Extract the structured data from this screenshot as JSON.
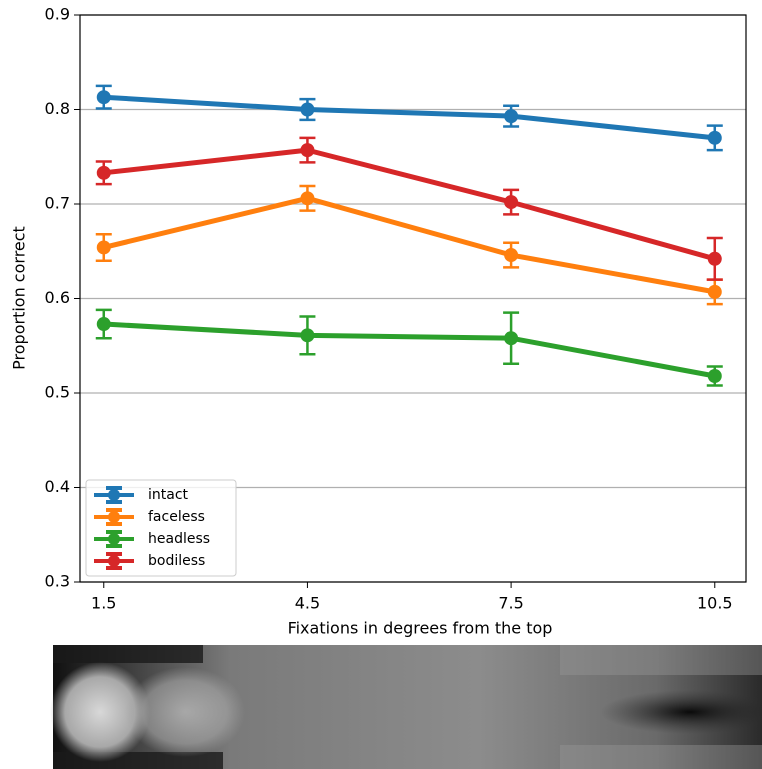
{
  "chart_data": {
    "type": "line",
    "x_label": "Fixations in degrees from the top",
    "y_label": "Proportion correct",
    "x": [
      1.5,
      4.5,
      7.5,
      10.5
    ],
    "xlim": [
      1.15,
      10.96
    ],
    "xticks": [
      1.5,
      4.5,
      7.5,
      10.5
    ],
    "ylim": [
      0.3,
      0.9
    ],
    "yticks": [
      0.3,
      0.4,
      0.5,
      0.6,
      0.7,
      0.8,
      0.9
    ],
    "grid": true,
    "legend": "lower left",
    "series": [
      {
        "name": "intact",
        "color": "#1f77b4",
        "values": [
          0.813,
          0.8,
          0.793,
          0.77
        ],
        "errors": [
          0.012,
          0.011,
          0.011,
          0.013
        ]
      },
      {
        "name": "faceless",
        "color": "#ff7f0e",
        "values": [
          0.654,
          0.706,
          0.646,
          0.607
        ],
        "errors": [
          0.014,
          0.013,
          0.013,
          0.013
        ]
      },
      {
        "name": "headless",
        "color": "#2ca02c",
        "values": [
          0.573,
          0.561,
          0.558,
          0.518
        ],
        "errors": [
          0.015,
          0.02,
          0.027,
          0.01
        ]
      },
      {
        "name": "bodiless",
        "color": "#d62728",
        "values": [
          0.733,
          0.757,
          0.702,
          0.642
        ],
        "errors": [
          0.012,
          0.013,
          0.013,
          0.022
        ]
      }
    ]
  }
}
